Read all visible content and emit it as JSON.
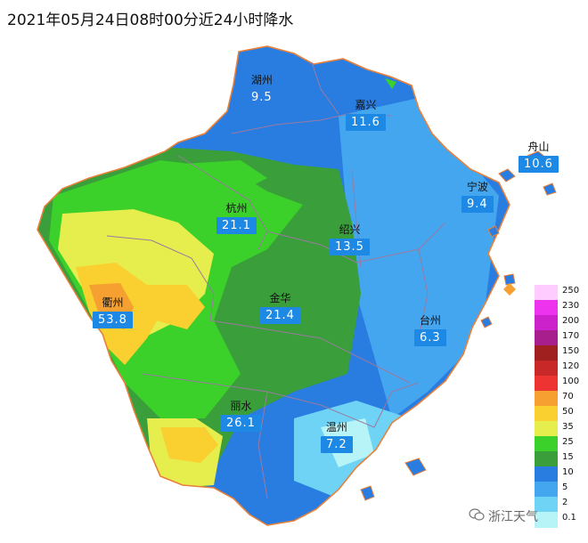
{
  "title": "2021年05月24日08时00分近24小时降水",
  "watermark": "浙江天气",
  "cities": [
    {
      "name": "湖州",
      "value": "9.5"
    },
    {
      "name": "嘉兴",
      "value": "11.6"
    },
    {
      "name": "舟山",
      "value": "10.6"
    },
    {
      "name": "宁波",
      "value": "9.4"
    },
    {
      "name": "杭州",
      "value": "21.1"
    },
    {
      "name": "绍兴",
      "value": "13.5"
    },
    {
      "name": "衢州",
      "value": "53.8"
    },
    {
      "name": "金华",
      "value": "21.4"
    },
    {
      "name": "台州",
      "value": "6.3"
    },
    {
      "name": "丽水",
      "value": "26.1"
    },
    {
      "name": "温州",
      "value": "7.2"
    }
  ],
  "legend": [
    {
      "label": "250",
      "color": "#ffccff"
    },
    {
      "label": "230",
      "color": "#ee33ee"
    },
    {
      "label": "200",
      "color": "#cc22cc"
    },
    {
      "label": "170",
      "color": "#a81e8c"
    },
    {
      "label": "150",
      "color": "#a02020"
    },
    {
      "label": "120",
      "color": "#c82828"
    },
    {
      "label": "100",
      "color": "#ee3333"
    },
    {
      "label": "70",
      "color": "#f5a030"
    },
    {
      "label": "50",
      "color": "#f9d030"
    },
    {
      "label": "35",
      "color": "#e6ee4e"
    },
    {
      "label": "25",
      "color": "#3bd12a"
    },
    {
      "label": "15",
      "color": "#3a9e3a"
    },
    {
      "label": "10",
      "color": "#2a7de0"
    },
    {
      "label": "5",
      "color": "#45a6f0"
    },
    {
      "label": "2",
      "color": "#6fd3f5"
    },
    {
      "label": "0.1",
      "color": "#b7f4f7"
    }
  ]
}
